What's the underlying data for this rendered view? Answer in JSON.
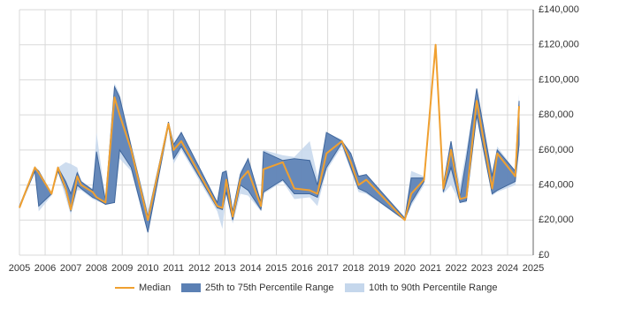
{
  "chart_data": {
    "type": "range-line",
    "x": [
      2005.0,
      2005.6,
      2005.75,
      2006.25,
      2006.5,
      2006.8,
      2007.0,
      2007.25,
      2007.4,
      2007.85,
      2008.0,
      2008.35,
      2008.7,
      2008.9,
      2009.35,
      2010.0,
      2010.8,
      2011.0,
      2011.3,
      2012.7,
      2012.9,
      2013.05,
      2013.3,
      2013.6,
      2013.9,
      2014.4,
      2014.5,
      2015.25,
      2015.7,
      2016.3,
      2016.6,
      2016.95,
      2017.55,
      2017.9,
      2018.2,
      2018.5,
      2020.0,
      2020.25,
      2020.75,
      2021.2,
      2021.5,
      2021.8,
      2022.15,
      2022.4,
      2022.8,
      2023.4,
      2023.6,
      2024.3,
      2024.45
    ],
    "series": [
      {
        "name": "Median",
        "color": "#f0a030",
        "values": [
          27000,
          50000,
          47000,
          35000,
          50000,
          38000,
          26000,
          45000,
          40000,
          36000,
          33000,
          30000,
          90000,
          80000,
          60000,
          20000,
          75000,
          60000,
          65000,
          28000,
          27000,
          43000,
          22000,
          43000,
          48000,
          28000,
          49000,
          53000,
          38000,
          37000,
          35000,
          58000,
          65000,
          53000,
          40000,
          43000,
          20000,
          35000,
          43000,
          120000,
          38000,
          60000,
          32000,
          33000,
          88000,
          38000,
          58000,
          45000,
          85000
        ]
      },
      {
        "name": "25th to 75th Percentile Range",
        "color": "#5b80b4",
        "low": [
          27000,
          48000,
          28000,
          35000,
          48000,
          37000,
          25000,
          40000,
          38000,
          33000,
          32000,
          29000,
          30000,
          60000,
          50000,
          13000,
          74000,
          55000,
          62000,
          27000,
          26000,
          36000,
          20000,
          40000,
          37000,
          26000,
          36000,
          43000,
          35000,
          35000,
          33000,
          50000,
          64000,
          50000,
          38000,
          36000,
          20000,
          30000,
          42000,
          119000,
          36000,
          50000,
          30000,
          31000,
          80000,
          35000,
          37000,
          42000,
          63000
        ],
        "high": [
          28000,
          50000,
          48000,
          35000,
          50000,
          42000,
          35000,
          47000,
          42000,
          37000,
          59000,
          31000,
          96000,
          90000,
          62000,
          22000,
          76000,
          63000,
          70000,
          30000,
          47000,
          48000,
          25000,
          46000,
          55000,
          30000,
          59000,
          54000,
          55000,
          54000,
          40000,
          70000,
          65000,
          58000,
          45000,
          46000,
          21000,
          44000,
          44000,
          120000,
          40000,
          65000,
          33000,
          55000,
          95000,
          45000,
          60000,
          48000,
          88000
        ]
      },
      {
        "name": "10th to 90th Percentile Range",
        "color": "#c5d7ec",
        "low": [
          27000,
          47000,
          25000,
          34000,
          47000,
          33000,
          23000,
          37000,
          37000,
          32000,
          31000,
          29000,
          30000,
          55000,
          48000,
          12000,
          74000,
          52000,
          60000,
          25000,
          15000,
          35000,
          18000,
          35000,
          34000,
          25000,
          35000,
          42000,
          32000,
          33000,
          28000,
          48000,
          62000,
          48000,
          36000,
          35000,
          20000,
          28000,
          40000,
          119000,
          35000,
          40000,
          30000,
          30000,
          78000,
          34000,
          36000,
          40000,
          60000
        ],
        "high": [
          28000,
          51000,
          48000,
          36000,
          50000,
          53000,
          52000,
          50000,
          42000,
          38000,
          70000,
          32000,
          98000,
          92000,
          63000,
          25000,
          76000,
          64000,
          70000,
          30000,
          48000,
          48000,
          26000,
          48000,
          55000,
          30000,
          60000,
          57000,
          56000,
          65000,
          45000,
          70000,
          66000,
          58000,
          45000,
          46000,
          22000,
          48000,
          45000,
          121000,
          41000,
          65000,
          40000,
          60000,
          95000,
          48000,
          62000,
          48000,
          92000
        ]
      }
    ],
    "xlim": [
      2005,
      2025
    ],
    "xticks": [
      2005,
      2006,
      2007,
      2008,
      2009,
      2010,
      2011,
      2012,
      2013,
      2014,
      2015,
      2016,
      2017,
      2018,
      2019,
      2020,
      2021,
      2022,
      2023,
      2024,
      2025
    ],
    "ylim": [
      0,
      140000
    ],
    "yticks": [
      {
        "value": 0,
        "label": "£0"
      },
      {
        "value": 20000,
        "label": "£20,000"
      },
      {
        "value": 40000,
        "label": "£40,000"
      },
      {
        "value": 60000,
        "label": "£60,000"
      },
      {
        "value": 80000,
        "label": "£80,000"
      },
      {
        "value": 100000,
        "label": "£100,000"
      },
      {
        "value": 120000,
        "label": "£120,000"
      },
      {
        "value": 140000,
        "label": "£140,000"
      }
    ],
    "grid": true,
    "legend": "bottom"
  }
}
